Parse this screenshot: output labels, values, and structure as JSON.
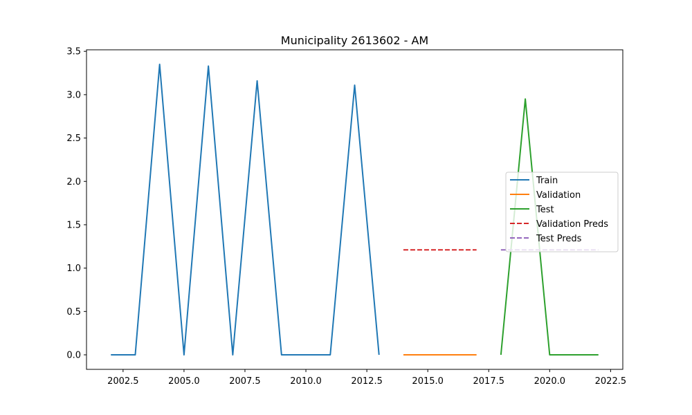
{
  "chart_data": {
    "type": "line",
    "title": "Municipality 2613602 - AM",
    "xlim": [
      2001.0,
      2023.0
    ],
    "ylim": [
      -0.1675,
      3.5175
    ],
    "x_ticks": [
      2002.5,
      2005.0,
      2007.5,
      2010.0,
      2012.5,
      2015.0,
      2017.5,
      2020.0,
      2022.5
    ],
    "x_tick_labels": [
      "2002.5",
      "2005.0",
      "2007.5",
      "2010.0",
      "2012.5",
      "2015.0",
      "2017.5",
      "2020.0",
      "2022.5"
    ],
    "y_ticks": [
      0.0,
      0.5,
      1.0,
      1.5,
      2.0,
      2.5,
      3.0,
      3.5
    ],
    "y_tick_labels": [
      "0.0",
      "0.5",
      "1.0",
      "1.5",
      "2.0",
      "2.5",
      "3.0",
      "3.5"
    ],
    "grid": false,
    "legend_position": "center-right",
    "series": [
      {
        "name": "Train",
        "color": "#1f77b4",
        "dash": "solid",
        "x": [
          2002,
          2003,
          2004,
          2005,
          2006,
          2007,
          2008,
          2009,
          2010,
          2011,
          2012,
          2013
        ],
        "y": [
          0.0,
          0.0,
          3.35,
          0.0,
          3.33,
          0.0,
          3.16,
          0.0,
          0.0,
          0.0,
          3.11,
          0.0
        ]
      },
      {
        "name": "Validation",
        "color": "#ff7f0e",
        "dash": "solid",
        "x": [
          2014,
          2015,
          2016,
          2017
        ],
        "y": [
          0.0,
          0.0,
          0.0,
          0.0
        ]
      },
      {
        "name": "Test",
        "color": "#2ca02c",
        "dash": "solid",
        "x": [
          2018,
          2019,
          2020,
          2021,
          2022
        ],
        "y": [
          0.0,
          2.95,
          0.0,
          0.0,
          0.0
        ]
      },
      {
        "name": "Validation Preds",
        "color": "#d62728",
        "dash": "dashed",
        "x": [
          2014,
          2015,
          2016,
          2017
        ],
        "y": [
          1.21,
          1.21,
          1.21,
          1.21
        ]
      },
      {
        "name": "Test Preds",
        "color": "#9467bd",
        "dash": "dashed",
        "x": [
          2018,
          2019,
          2020,
          2021,
          2022
        ],
        "y": [
          1.21,
          1.21,
          1.21,
          1.21,
          1.21
        ]
      }
    ]
  }
}
